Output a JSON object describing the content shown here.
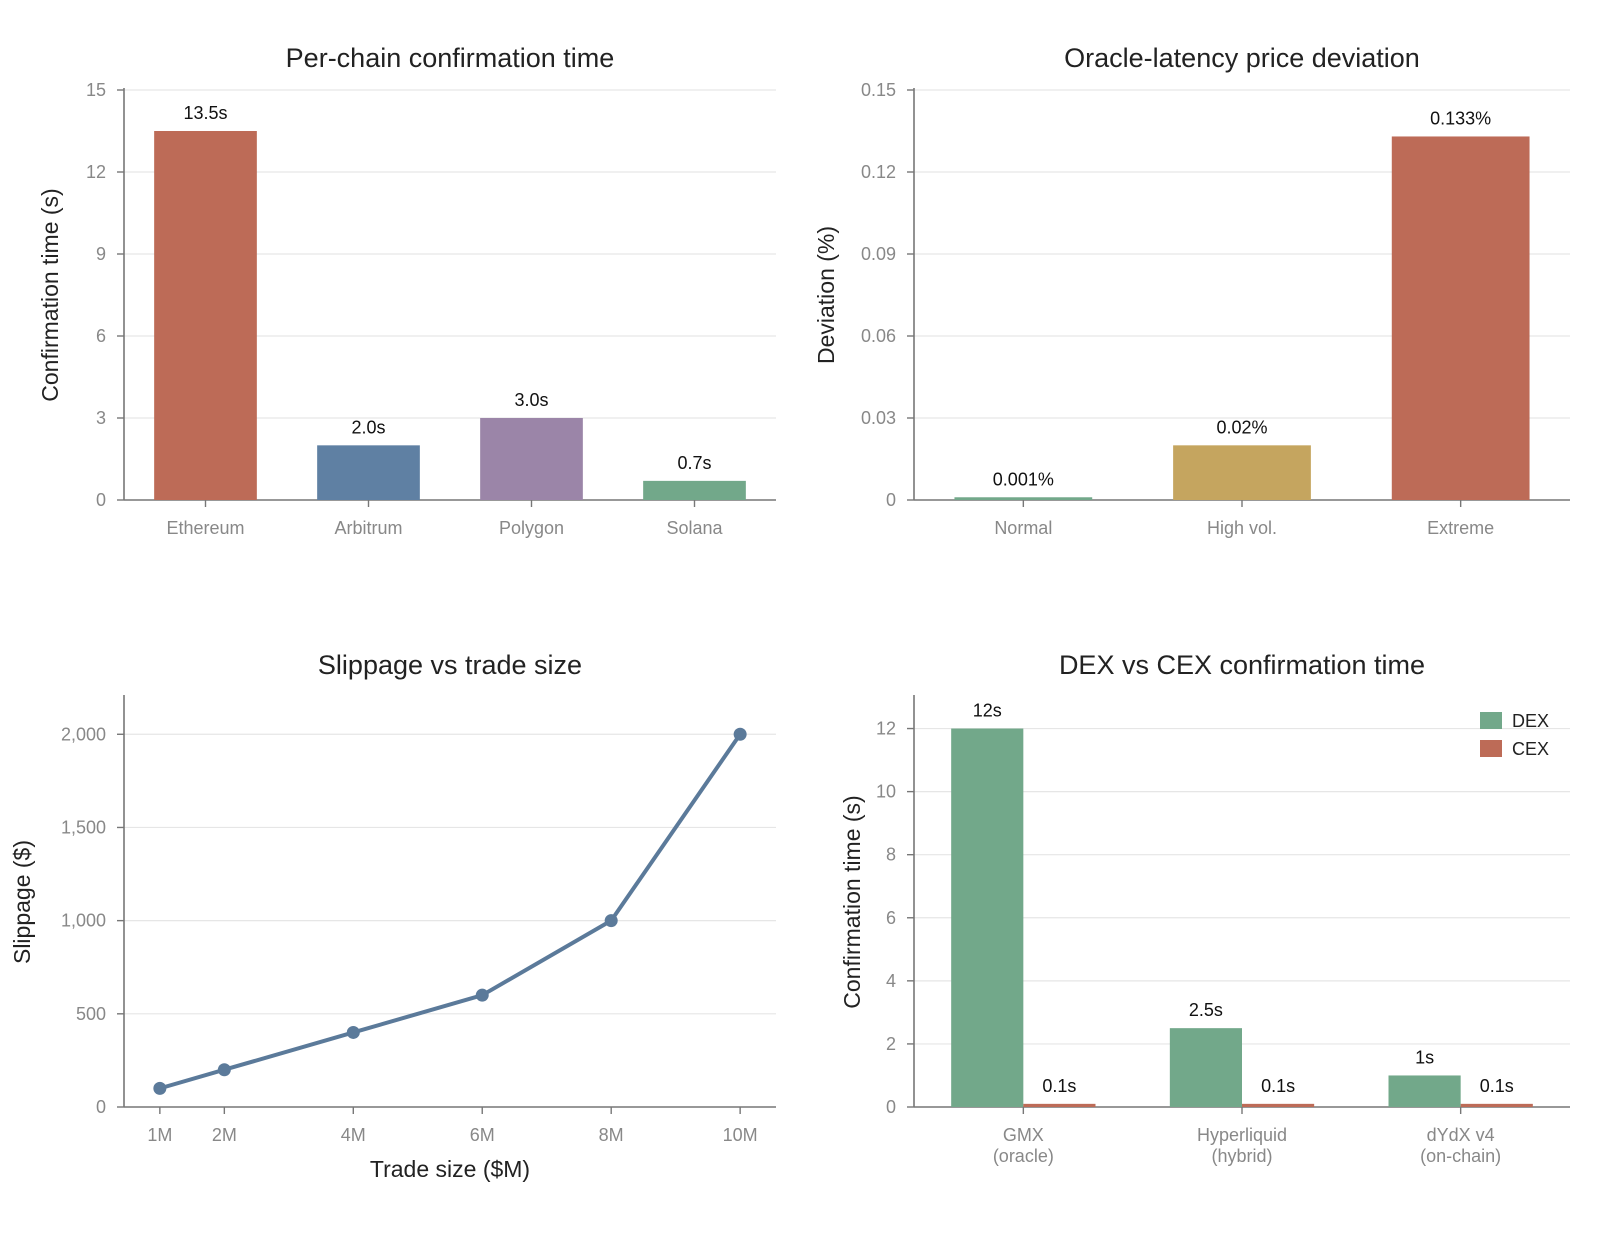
{
  "chart_data": [
    {
      "type": "bar",
      "title": "Per-chain confirmation time",
      "xlabel": "",
      "ylabel": "Confirmation time (s)",
      "ylim": [
        0,
        15
      ],
      "yticks": [
        0,
        3,
        6,
        9,
        12,
        15
      ],
      "ytick_labels": [
        "0",
        "3",
        "6",
        "9",
        "12",
        "15"
      ],
      "grid": true,
      "categories": [
        "Ethereum",
        "Arbitrum",
        "Polygon",
        "Solana"
      ],
      "values": [
        13.5,
        2.0,
        3.0,
        0.7
      ],
      "value_labels": [
        "13.5s",
        "2.0s",
        "3.0s",
        "0.7s"
      ],
      "colors": [
        "#bd6b57",
        "#5f80a3",
        "#9b85a8",
        "#72a88a"
      ]
    },
    {
      "type": "bar",
      "title": "Oracle-latency price deviation",
      "xlabel": "",
      "ylabel": "Deviation (%)",
      "ylim": [
        0,
        0.15
      ],
      "yticks": [
        0,
        0.03,
        0.06,
        0.09,
        0.12,
        0.15
      ],
      "ytick_labels": [
        "0",
        "0.03",
        "0.06",
        "0.09",
        "0.12",
        "0.15"
      ],
      "grid": true,
      "categories": [
        "Normal",
        "High vol.",
        "Extreme"
      ],
      "values": [
        0.001,
        0.02,
        0.133
      ],
      "value_labels": [
        "0.001%",
        "0.02%",
        "0.133%"
      ],
      "colors": [
        "#72a88a",
        "#c5a55f",
        "#bd6b57"
      ]
    },
    {
      "type": "line",
      "title": "Slippage vs trade size",
      "xlabel": "Trade size ($M)",
      "ylabel": "Slippage ($)",
      "ylim": [
        0,
        2200
      ],
      "yticks": [
        0,
        500,
        1000,
        1500,
        2000
      ],
      "ytick_labels": [
        "0",
        "500",
        "1,000",
        "1,500",
        "2,000"
      ],
      "grid": true,
      "x": [
        1,
        2,
        4,
        6,
        8,
        10
      ],
      "x_labels": [
        "1M",
        "2M",
        "4M",
        "6M",
        "8M",
        "10M"
      ],
      "values": [
        100,
        200,
        400,
        600,
        1000,
        2000
      ],
      "color": "#5b7a9a"
    },
    {
      "type": "bar",
      "title": "DEX vs CEX confirmation time",
      "xlabel": "",
      "ylabel": "Confirmation time (s)",
      "ylim": [
        0,
        13
      ],
      "yticks": [
        0,
        2,
        4,
        6,
        8,
        10,
        12
      ],
      "ytick_labels": [
        "0",
        "2",
        "4",
        "6",
        "8",
        "10",
        "12"
      ],
      "grid": true,
      "legend_position": "top-right",
      "categories": [
        [
          "GMX",
          "(oracle)"
        ],
        [
          "Hyperliquid",
          "(hybrid)"
        ],
        [
          "dYdX v4",
          "(on-chain)"
        ]
      ],
      "series": [
        {
          "name": "DEX",
          "color": "#72a88a",
          "values": [
            12,
            2.5,
            1
          ],
          "value_labels": [
            "12s",
            "2.5s",
            "1s"
          ]
        },
        {
          "name": "CEX",
          "color": "#bd6b57",
          "values": [
            0.1,
            0.1,
            0.1
          ],
          "value_labels": [
            "0.1s",
            "0.1s",
            "0.1s"
          ]
        }
      ]
    }
  ]
}
